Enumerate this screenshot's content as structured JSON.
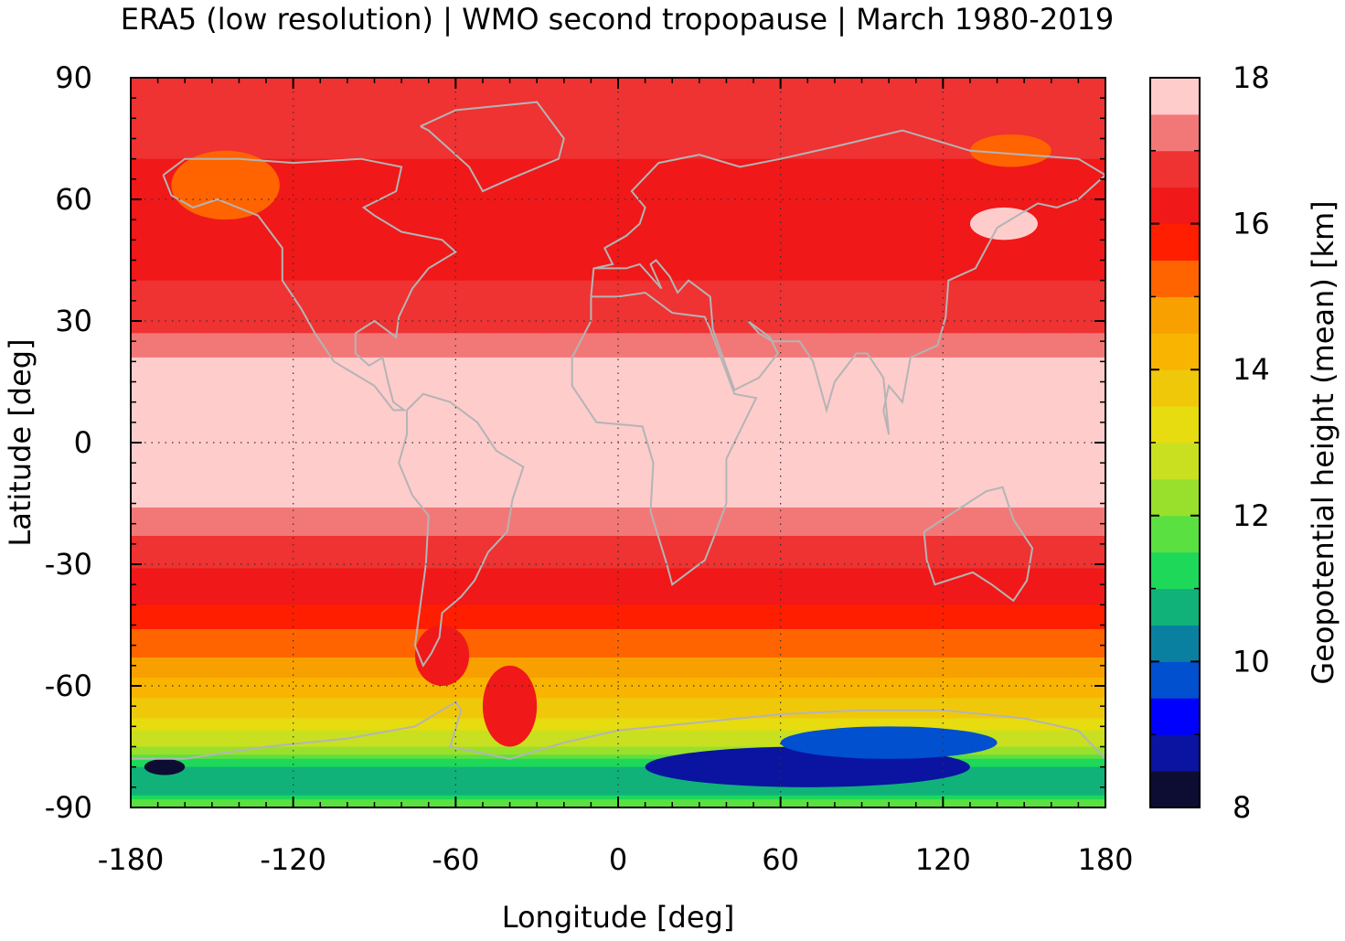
{
  "chart_data": {
    "type": "heatmap",
    "title": "ERA5 (low resolution) | WMO second tropopause | March 1980-2019",
    "xlabel": "Longitude [deg]",
    "ylabel": "Latitude [deg]",
    "colorbar_label": "Geopotential height (mean) [km]",
    "xlim": [
      -180,
      180
    ],
    "ylim": [
      -90,
      90
    ],
    "x_ticks": [
      -180,
      -120,
      -60,
      0,
      60,
      120,
      180
    ],
    "x_tick_labels": [
      "-180",
      "-120",
      "-60",
      "0",
      "60",
      "120",
      "180"
    ],
    "y_ticks": [
      90,
      60,
      30,
      0,
      -30,
      -60,
      -90
    ],
    "y_tick_labels": [
      "90",
      "60",
      "30",
      "0",
      "-30",
      "-60",
      "-90"
    ],
    "colorbar_range": [
      8,
      18
    ],
    "colorbar_ticks": [
      18,
      16,
      14,
      12,
      10,
      8
    ],
    "colorbar_tick_labels": [
      "18",
      "16",
      "14",
      "12",
      "10",
      "8"
    ],
    "colorbar_colors": [
      "#0d0d33",
      "#0a14a0",
      "#0000ff",
      "#0050d0",
      "#0a80a0",
      "#10b27a",
      "#1ed85a",
      "#5ae040",
      "#98e02c",
      "#c8e020",
      "#e6dc10",
      "#f0c80a",
      "#f8b400",
      "#f8a000",
      "#ff6400",
      "#ff1e00",
      "#f01818",
      "#ef3232",
      "#f27878",
      "#ffcccc"
    ],
    "grid": "dotted",
    "coastlines": "gray",
    "zonal_profile": {
      "latitudes": [
        90,
        80,
        70,
        60,
        50,
        40,
        30,
        25,
        20,
        15,
        10,
        0,
        -10,
        -15,
        -20,
        -25,
        -30,
        -35,
        -40,
        -45,
        -50,
        -55,
        -60,
        -65,
        -70,
        -75,
        -80,
        -85,
        -90
      ],
      "heights_km": [
        16.6,
        16.6,
        16.5,
        16.2,
        16.3,
        16.5,
        16.8,
        17.1,
        17.6,
        17.8,
        17.8,
        17.8,
        17.8,
        17.6,
        17.2,
        16.9,
        16.6,
        16.2,
        16.0,
        15.6,
        15.2,
        14.8,
        14.3,
        13.8,
        13.2,
        12.5,
        11.0,
        10.5,
        12.0
      ]
    },
    "regions": [
      {
        "lon": [
          -165,
          -125
        ],
        "lat": [
          55,
          72
        ],
        "height_km": 15.3
      },
      {
        "lon": [
          130,
          155
        ],
        "lat": [
          50,
          58
        ],
        "height_km": 17.6
      },
      {
        "lon": [
          130,
          160
        ],
        "lat": [
          68,
          76
        ],
        "height_km": 15.3
      },
      {
        "lon": [
          -50,
          -30
        ],
        "lat": [
          -75,
          -55
        ],
        "height_km": 16.0
      },
      {
        "lon": [
          -75,
          -55
        ],
        "lat": [
          -60,
          -45
        ],
        "height_km": 16.0
      },
      {
        "lon": [
          10,
          130
        ],
        "lat": [
          -85,
          -75
        ],
        "height_km": 8.5
      },
      {
        "lon": [
          60,
          140
        ],
        "lat": [
          -78,
          -70
        ],
        "height_km": 9.6
      },
      {
        "lon": [
          -175,
          -160
        ],
        "lat": [
          -82,
          -78
        ],
        "height_km": 8.4
      }
    ]
  }
}
